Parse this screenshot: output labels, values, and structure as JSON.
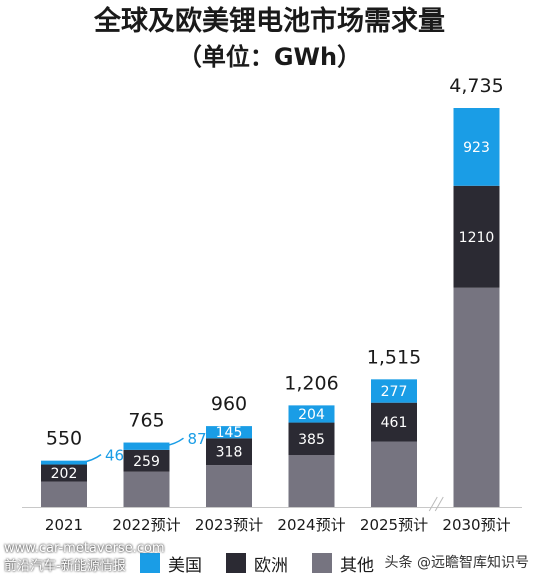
{
  "title": "全球及欧美锂电池市场需求量",
  "subtitle": "（单位：GWh）",
  "chart_data": {
    "type": "bar",
    "stacked": true,
    "categories": [
      "2021",
      "2022预计",
      "2023预计",
      "2024预计",
      "2025预计",
      "2030预计"
    ],
    "series": [
      {
        "name": "其他",
        "color": "#767480",
        "values": [
          302,
          419,
          497,
          617,
          777,
          2602
        ]
      },
      {
        "name": "欧洲",
        "color": "#2b2a33",
        "values": [
          202,
          259,
          318,
          385,
          461,
          1210
        ]
      },
      {
        "name": "美国",
        "color": "#1a9de6",
        "values": [
          46,
          87,
          145,
          204,
          277,
          923
        ]
      }
    ],
    "totals": [
      "550",
      "765",
      "960",
      "1,206",
      "1,515",
      "4,735"
    ],
    "segment_labels": {
      "欧洲": [
        "202",
        "259",
        "318",
        "385",
        "461",
        "1210"
      ],
      "美国": [
        "46",
        "87",
        "145",
        "204",
        "277",
        "923"
      ]
    },
    "outside_labels": [
      "46",
      "87"
    ],
    "ylim": [
      0,
      4735
    ],
    "grid": false,
    "legend_position": "bottom"
  },
  "legend": [
    "美国",
    "欧洲",
    "其他"
  ],
  "watermark": {
    "url": "www.car-metaverse.com",
    "site_name": "前沿汽车-新能源情报",
    "source": "头条 @远瞻智库知识号"
  }
}
